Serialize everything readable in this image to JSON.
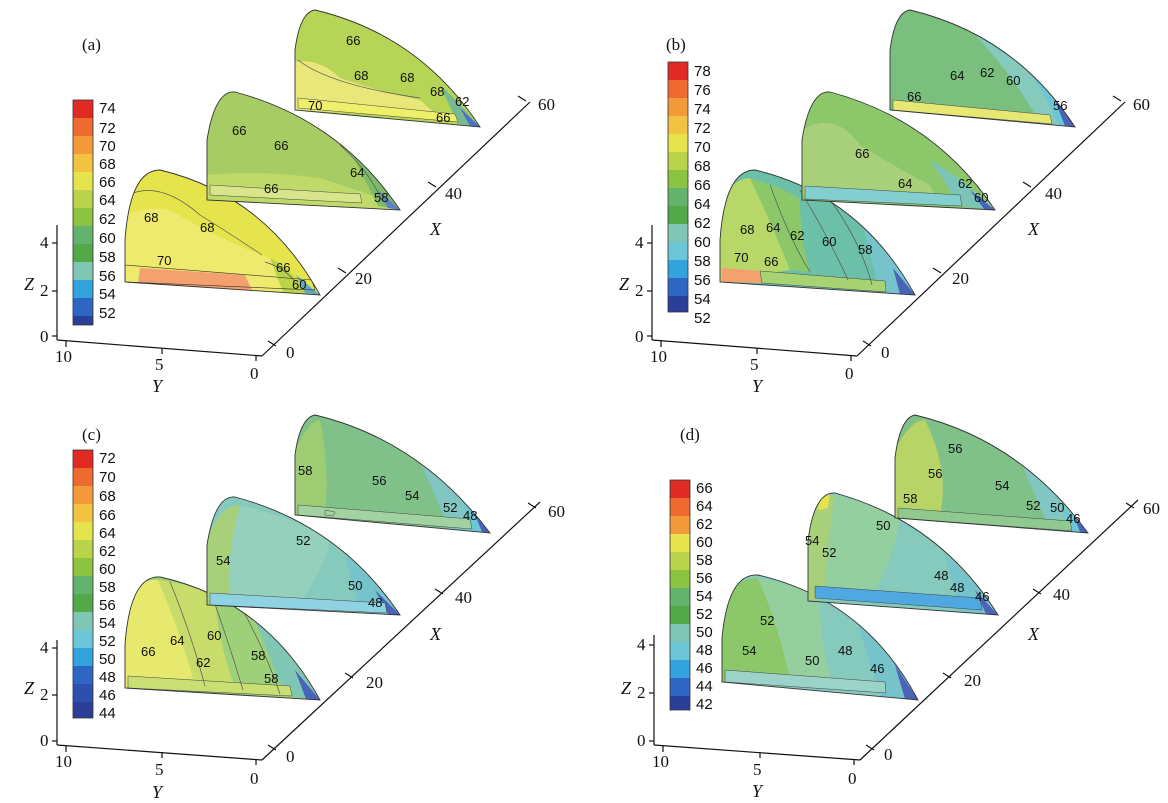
{
  "chart_data": [
    {
      "type": "heatmap",
      "panel_label": "(a)",
      "xlabel": "X",
      "ylabel": "Y",
      "zlabel": "Z",
      "x_ticks": [
        "0",
        "20",
        "40",
        "60"
      ],
      "y_ticks": [
        "10",
        "5",
        "0"
      ],
      "z_ticks": [
        "0",
        "2",
        "4"
      ],
      "colorbar_ticks": [
        "74",
        "72",
        "70",
        "68",
        "66",
        "64",
        "62",
        "60",
        "58",
        "56",
        "54",
        "52"
      ],
      "slices": [
        {
          "x": 0,
          "dominant_value": 68,
          "labels": [
            "68",
            "68",
            "70",
            "66",
            "60"
          ]
        },
        {
          "x": 20,
          "dominant_value": 65,
          "labels": [
            "66",
            "66",
            "66",
            "64",
            "58"
          ]
        },
        {
          "x": 40,
          "dominant_value": 68,
          "labels": [
            "66",
            "68",
            "68",
            "68",
            "70",
            "62",
            "66"
          ]
        }
      ]
    },
    {
      "type": "heatmap",
      "panel_label": "(b)",
      "xlabel": "X",
      "ylabel": "Y",
      "zlabel": "Z",
      "x_ticks": [
        "0",
        "20",
        "40",
        "60"
      ],
      "y_ticks": [
        "10",
        "5",
        "0"
      ],
      "z_ticks": [
        "0",
        "2",
        "4"
      ],
      "colorbar_ticks": [
        "78",
        "76",
        "74",
        "72",
        "70",
        "68",
        "66",
        "64",
        "62",
        "60",
        "58",
        "56",
        "54",
        "52"
      ],
      "slices": [
        {
          "x": 0,
          "dominant_value": 62,
          "labels": [
            "68",
            "64",
            "62",
            "60",
            "58",
            "70",
            "66"
          ]
        },
        {
          "x": 20,
          "dominant_value": 66,
          "labels": [
            "66",
            "64",
            "62",
            "60"
          ]
        },
        {
          "x": 40,
          "dominant_value": 63,
          "labels": [
            "64",
            "62",
            "60",
            "66",
            "56"
          ]
        }
      ]
    },
    {
      "type": "heatmap",
      "panel_label": "(c)",
      "xlabel": "X",
      "ylabel": "Y",
      "zlabel": "Z",
      "x_ticks": [
        "0",
        "20",
        "40",
        "60"
      ],
      "y_ticks": [
        "10",
        "5",
        "0"
      ],
      "z_ticks": [
        "0",
        "2",
        "4"
      ],
      "colorbar_ticks": [
        "72",
        "70",
        "68",
        "66",
        "64",
        "62",
        "60",
        "58",
        "56",
        "54",
        "52",
        "50",
        "48",
        "46",
        "44"
      ],
      "slices": [
        {
          "x": 0,
          "dominant_value": 62,
          "labels": [
            "66",
            "64",
            "60",
            "62",
            "58",
            "58"
          ]
        },
        {
          "x": 20,
          "dominant_value": 52,
          "labels": [
            "54",
            "52",
            "50",
            "48"
          ]
        },
        {
          "x": 40,
          "dominant_value": 55,
          "labels": [
            "58",
            "56",
            "54",
            "52",
            "48"
          ]
        }
      ]
    },
    {
      "type": "heatmap",
      "panel_label": "(d)",
      "xlabel": "X",
      "ylabel": "Y",
      "zlabel": "Z",
      "x_ticks": [
        "0",
        "20",
        "40",
        "60"
      ],
      "y_ticks": [
        "10",
        "5",
        "0"
      ],
      "z_ticks": [
        "0",
        "2",
        "4"
      ],
      "colorbar_ticks": [
        "66",
        "64",
        "62",
        "60",
        "58",
        "56",
        "54",
        "52",
        "50",
        "48",
        "46",
        "44",
        "42"
      ],
      "slices": [
        {
          "x": 0,
          "dominant_value": 50,
          "labels": [
            "52",
            "54",
            "50",
            "48",
            "46"
          ]
        },
        {
          "x": 20,
          "dominant_value": 50,
          "labels": [
            "54",
            "52",
            "50",
            "48",
            "48",
            "46"
          ]
        },
        {
          "x": 40,
          "dominant_value": 55,
          "labels": [
            "56",
            "56",
            "58",
            "54",
            "52",
            "50",
            "46"
          ]
        }
      ]
    }
  ],
  "colors": {
    "palette": [
      "#2b3f99",
      "#2f66c4",
      "#33a3dd",
      "#6cc6d6",
      "#7fc6b5",
      "#63b36f",
      "#53a84a",
      "#8cc340",
      "#b9d34a",
      "#e5e44d",
      "#f2c243",
      "#f39a3a",
      "#ee6a30",
      "#df2b24"
    ]
  }
}
